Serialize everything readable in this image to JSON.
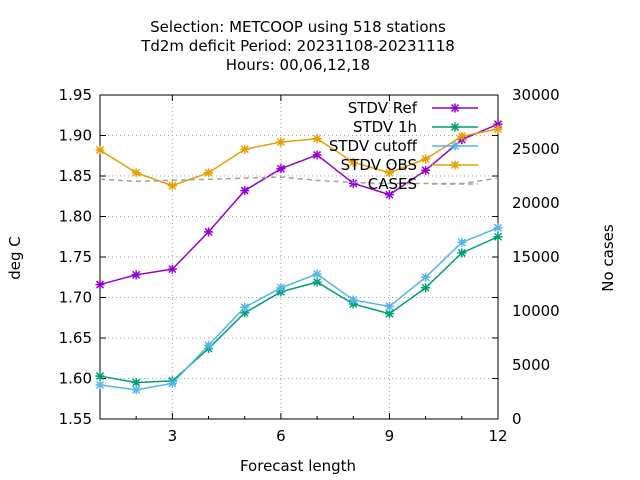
{
  "chart_data": {
    "type": "line",
    "title_lines": [
      "Selection: METCOOP using   518 stations",
      "Td2m deficit   Period: 20231108-20231118",
      "Hours:  00,06,12,18"
    ],
    "xlabel": "Forecast length",
    "ylabel": "deg C",
    "y2label": "No cases",
    "xlim": [
      1,
      12
    ],
    "ylim": [
      1.55,
      1.95
    ],
    "y2lim": [
      0,
      30000
    ],
    "xticks": [
      3,
      6,
      9,
      12
    ],
    "yticks": [
      1.55,
      1.6,
      1.65,
      1.7,
      1.75,
      1.8,
      1.85,
      1.9,
      1.95
    ],
    "y2ticks": [
      0,
      5000,
      10000,
      15000,
      20000,
      25000,
      30000
    ],
    "grid": true,
    "legend_position": "top-right",
    "x": [
      1,
      2,
      3,
      4,
      5,
      6,
      7,
      8,
      9,
      10,
      11,
      12
    ],
    "series": [
      {
        "name": "STDV Ref",
        "color": "#9400d3",
        "axis": "y",
        "marker": "x",
        "values": [
          1.716,
          1.728,
          1.735,
          1.781,
          1.832,
          1.859,
          1.876,
          1.841,
          1.827,
          1.857,
          1.895,
          1.914
        ]
      },
      {
        "name": "STDV 1h",
        "color": "#009e73",
        "axis": "y",
        "marker": "x",
        "values": [
          1.603,
          1.595,
          1.597,
          1.637,
          1.681,
          1.707,
          1.719,
          1.692,
          1.68,
          1.712,
          1.755,
          1.775
        ]
      },
      {
        "name": "STDV cutoff",
        "color": "#56b4e9",
        "axis": "y",
        "marker": "x",
        "values": [
          1.592,
          1.586,
          1.594,
          1.641,
          1.688,
          1.712,
          1.729,
          1.697,
          1.689,
          1.725,
          1.768,
          1.786
        ]
      },
      {
        "name": "STDV OBS",
        "color": "#e69f00",
        "axis": "y",
        "marker": "x",
        "values": [
          1.882,
          1.854,
          1.838,
          1.854,
          1.883,
          1.892,
          1.896,
          1.867,
          1.854,
          1.871,
          1.899,
          1.908
        ]
      },
      {
        "name": "CASES",
        "color": "#a0a0a0",
        "axis": "y2",
        "marker": "none",
        "dashed": true,
        "values": [
          22200,
          22000,
          22100,
          22200,
          22300,
          22400,
          22100,
          21900,
          21800,
          21800,
          21800,
          22300
        ]
      }
    ]
  }
}
